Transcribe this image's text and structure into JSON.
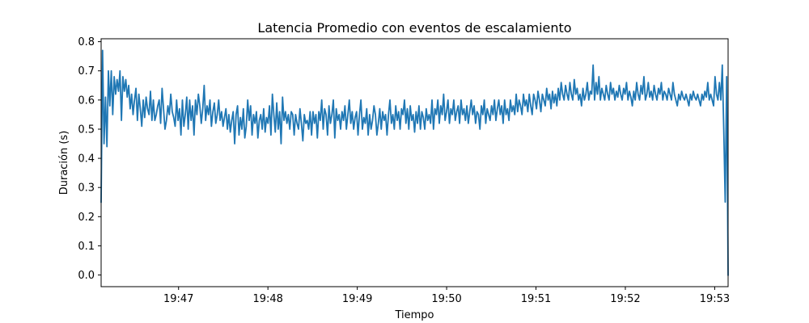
{
  "chart_data": {
    "type": "line",
    "title": "Latencia Promedio con eventos de escalamiento",
    "xlabel": "Tiempo",
    "ylabel": "Duración (s)",
    "xlim": [
      "19:46:08",
      "19:53:09"
    ],
    "ylim": [
      -0.04,
      0.81
    ],
    "x_ticks": [
      "19:47",
      "19:48",
      "19:49",
      "19:50",
      "19:51",
      "19:52",
      "19:53"
    ],
    "y_ticks": [
      "0.0",
      "0.1",
      "0.2",
      "0.3",
      "0.4",
      "0.5",
      "0.6",
      "0.7",
      "0.8"
    ],
    "grid": false,
    "series": [
      {
        "color": "#1f77b4",
        "x_start": "19:46:08",
        "x_end": "19:53:09",
        "values": [
          0.25,
          0.77,
          0.45,
          0.61,
          0.44,
          0.7,
          0.58,
          0.7,
          0.55,
          0.68,
          0.62,
          0.67,
          0.63,
          0.7,
          0.53,
          0.68,
          0.63,
          0.67,
          0.61,
          0.65,
          0.57,
          0.62,
          0.55,
          0.6,
          0.64,
          0.53,
          0.62,
          0.57,
          0.51,
          0.6,
          0.54,
          0.61,
          0.57,
          0.55,
          0.63,
          0.53,
          0.6,
          0.53,
          0.55,
          0.58,
          0.6,
          0.52,
          0.64,
          0.57,
          0.5,
          0.53,
          0.58,
          0.55,
          0.62,
          0.56,
          0.54,
          0.51,
          0.6,
          0.53,
          0.57,
          0.48,
          0.6,
          0.51,
          0.55,
          0.61,
          0.5,
          0.6,
          0.53,
          0.58,
          0.48,
          0.6,
          0.55,
          0.62,
          0.58,
          0.52,
          0.57,
          0.65,
          0.53,
          0.58,
          0.55,
          0.6,
          0.51,
          0.56,
          0.59,
          0.52,
          0.55,
          0.6,
          0.53,
          0.56,
          0.51,
          0.54,
          0.57,
          0.5,
          0.55,
          0.49,
          0.53,
          0.56,
          0.45,
          0.55,
          0.58,
          0.48,
          0.54,
          0.5,
          0.57,
          0.47,
          0.51,
          0.6,
          0.53,
          0.58,
          0.48,
          0.55,
          0.52,
          0.56,
          0.47,
          0.53,
          0.55,
          0.5,
          0.57,
          0.49,
          0.54,
          0.52,
          0.58,
          0.48,
          0.62,
          0.55,
          0.49,
          0.59,
          0.5,
          0.56,
          0.45,
          0.61,
          0.53,
          0.56,
          0.52,
          0.55,
          0.5,
          0.56,
          0.55,
          0.48,
          0.55,
          0.52,
          0.5,
          0.57,
          0.52,
          0.46,
          0.55,
          0.52,
          0.53,
          0.5,
          0.56,
          0.48,
          0.56,
          0.52,
          0.55,
          0.47,
          0.56,
          0.53,
          0.6,
          0.5,
          0.57,
          0.55,
          0.48,
          0.58,
          0.52,
          0.55,
          0.6,
          0.47,
          0.57,
          0.53,
          0.55,
          0.5,
          0.56,
          0.53,
          0.58,
          0.5,
          0.55,
          0.6,
          0.52,
          0.56,
          0.5,
          0.54,
          0.56,
          0.48,
          0.55,
          0.6,
          0.5,
          0.54,
          0.52,
          0.57,
          0.48,
          0.55,
          0.5,
          0.53,
          0.58,
          0.55,
          0.48,
          0.52,
          0.57,
          0.5,
          0.56,
          0.53,
          0.55,
          0.48,
          0.55,
          0.6,
          0.52,
          0.55,
          0.5,
          0.58,
          0.53,
          0.56,
          0.5,
          0.57,
          0.55,
          0.6,
          0.52,
          0.57,
          0.5,
          0.58,
          0.53,
          0.55,
          0.49,
          0.56,
          0.52,
          0.58,
          0.5,
          0.56,
          0.54,
          0.5,
          0.57,
          0.53,
          0.55,
          0.52,
          0.6,
          0.5,
          0.57,
          0.55,
          0.6,
          0.52,
          0.58,
          0.55,
          0.62,
          0.53,
          0.56,
          0.6,
          0.52,
          0.57,
          0.55,
          0.6,
          0.53,
          0.56,
          0.58,
          0.52,
          0.6,
          0.55,
          0.57,
          0.53,
          0.58,
          0.52,
          0.56,
          0.6,
          0.55,
          0.58,
          0.52,
          0.56,
          0.55,
          0.5,
          0.58,
          0.55,
          0.6,
          0.52,
          0.57,
          0.55,
          0.53,
          0.58,
          0.55,
          0.6,
          0.53,
          0.57,
          0.6,
          0.55,
          0.58,
          0.52,
          0.6,
          0.55,
          0.57,
          0.53,
          0.6,
          0.56,
          0.58,
          0.55,
          0.62,
          0.56,
          0.6,
          0.58,
          0.55,
          0.62,
          0.58,
          0.6,
          0.56,
          0.62,
          0.58,
          0.55,
          0.62,
          0.6,
          0.57,
          0.63,
          0.6,
          0.56,
          0.62,
          0.6,
          0.58,
          0.64,
          0.6,
          0.62,
          0.57,
          0.63,
          0.59,
          0.62,
          0.58,
          0.64,
          0.6,
          0.66,
          0.62,
          0.6,
          0.65,
          0.62,
          0.6,
          0.66,
          0.62,
          0.6,
          0.67,
          0.62,
          0.64,
          0.6,
          0.62,
          0.58,
          0.64,
          0.6,
          0.62,
          0.66,
          0.6,
          0.63,
          0.62,
          0.72,
          0.6,
          0.66,
          0.62,
          0.68,
          0.6,
          0.64,
          0.62,
          0.6,
          0.65,
          0.62,
          0.6,
          0.66,
          0.62,
          0.64,
          0.6,
          0.63,
          0.61,
          0.65,
          0.62,
          0.6,
          0.64,
          0.62,
          0.66,
          0.6,
          0.63,
          0.61,
          0.58,
          0.63,
          0.6,
          0.66,
          0.62,
          0.6,
          0.65,
          0.62,
          0.68,
          0.6,
          0.62,
          0.66,
          0.61,
          0.63,
          0.6,
          0.65,
          0.62,
          0.6,
          0.64,
          0.62,
          0.66,
          0.6,
          0.63,
          0.62,
          0.6,
          0.64,
          0.62,
          0.6,
          0.66,
          0.62,
          0.6,
          0.58,
          0.62,
          0.6,
          0.63,
          0.61,
          0.6,
          0.62,
          0.6,
          0.58,
          0.62,
          0.6,
          0.63,
          0.61,
          0.6,
          0.62,
          0.6,
          0.58,
          0.62,
          0.6,
          0.63,
          0.61,
          0.66,
          0.6,
          0.62,
          0.6,
          0.58,
          0.68,
          0.62,
          0.6,
          0.66,
          0.6,
          0.72,
          0.5,
          0.25,
          0.68,
          0.0
        ]
      }
    ]
  }
}
